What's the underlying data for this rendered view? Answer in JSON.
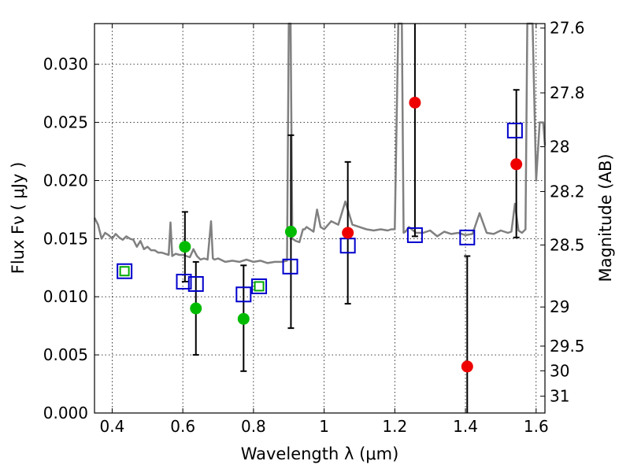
{
  "chart_data": {
    "type": "scatter",
    "xlabel": "Wavelength  λ (μm)",
    "ylabel": "Flux  Fν  ( μJy )",
    "ylabel_right": "Magnitude (AB)",
    "xlim": [
      0.35,
      1.625
    ],
    "ylim": [
      0.0,
      0.0335
    ],
    "grid": true,
    "x_ticks": [
      0.4,
      0.6,
      0.8,
      1.0,
      1.2,
      1.4,
      1.6
    ],
    "x_tick_labels": [
      "0.4",
      "0.6",
      "0.8",
      "1",
      "1.2",
      "1.4",
      "1.6"
    ],
    "y_ticks": [
      0.0,
      0.005,
      0.01,
      0.015,
      0.02,
      0.025,
      0.03
    ],
    "y_tick_labels": [
      "0.000",
      "0.005",
      "0.010",
      "0.015",
      "0.020",
      "0.025",
      "0.030"
    ],
    "right_ticks": [
      {
        "label": "27.6",
        "value": 27.6
      },
      {
        "label": "27.8",
        "value": 27.8
      },
      {
        "label": "28",
        "value": 28.0
      },
      {
        "label": "28.2",
        "value": 28.2
      },
      {
        "label": "28.5",
        "value": 28.5
      },
      {
        "label": "29",
        "value": 29.0
      },
      {
        "label": "29.5",
        "value": 29.5
      },
      {
        "label": "30",
        "value": 30.0
      },
      {
        "label": "31",
        "value": 31.0
      }
    ],
    "series": [
      {
        "marker": "line",
        "color": "#808080",
        "x": [
          0.35,
          0.36,
          0.37,
          0.38,
          0.39,
          0.4,
          0.41,
          0.42,
          0.43,
          0.44,
          0.45,
          0.46,
          0.47,
          0.48,
          0.49,
          0.5,
          0.51,
          0.52,
          0.53,
          0.54,
          0.55,
          0.56,
          0.565,
          0.57,
          0.58,
          0.59,
          0.6,
          0.61,
          0.62,
          0.63,
          0.64,
          0.65,
          0.66,
          0.67,
          0.68,
          0.685,
          0.69,
          0.7,
          0.72,
          0.74,
          0.76,
          0.78,
          0.8,
          0.82,
          0.84,
          0.86,
          0.88,
          0.895,
          0.9,
          0.905,
          0.91,
          0.92,
          0.93,
          0.94,
          0.945,
          0.95,
          0.96,
          0.97,
          0.98,
          0.99,
          1.0,
          1.02,
          1.04,
          1.06,
          1.08,
          1.09,
          1.1,
          1.12,
          1.14,
          1.16,
          1.18,
          1.19,
          1.2,
          1.21,
          1.22,
          1.225,
          1.23,
          1.24,
          1.26,
          1.28,
          1.3,
          1.32,
          1.34,
          1.36,
          1.38,
          1.4,
          1.42,
          1.44,
          1.46,
          1.48,
          1.5,
          1.52,
          1.53,
          1.54,
          1.55,
          1.56,
          1.57,
          1.575,
          1.58,
          1.59,
          1.6,
          1.61,
          1.62,
          1.625
        ],
        "y": [
          0.0168,
          0.0162,
          0.015,
          0.0155,
          0.0153,
          0.015,
          0.0154,
          0.0151,
          0.0149,
          0.0152,
          0.015,
          0.0149,
          0.0143,
          0.0148,
          0.0141,
          0.0143,
          0.014,
          0.014,
          0.0138,
          0.0138,
          0.0137,
          0.0136,
          0.0164,
          0.0135,
          0.0137,
          0.0136,
          0.0136,
          0.0135,
          0.0134,
          0.0141,
          0.0135,
          0.0132,
          0.0133,
          0.0132,
          0.0165,
          0.0133,
          0.0132,
          0.0133,
          0.013,
          0.0131,
          0.013,
          0.0132,
          0.013,
          0.0131,
          0.0129,
          0.013,
          0.013,
          0.0131,
          0.0335,
          0.0335,
          0.015,
          0.0148,
          0.0147,
          0.0158,
          0.0158,
          0.016,
          0.0158,
          0.0156,
          0.0175,
          0.016,
          0.0158,
          0.0165,
          0.0162,
          0.0182,
          0.0162,
          0.0161,
          0.016,
          0.0158,
          0.0157,
          0.0158,
          0.0157,
          0.0158,
          0.0158,
          0.0335,
          0.0335,
          0.0155,
          0.0156,
          0.016,
          0.0155,
          0.0155,
          0.0157,
          0.0152,
          0.0156,
          0.0154,
          0.0155,
          0.0153,
          0.0154,
          0.0172,
          0.0155,
          0.0154,
          0.0157,
          0.0155,
          0.0156,
          0.018,
          0.0157,
          0.0155,
          0.0158,
          0.0335,
          0.0335,
          0.0335,
          0.02,
          0.025,
          0.025,
          0.023
        ]
      },
      {
        "marker": "square-open",
        "color": "#0000cc",
        "x": [
          0.435,
          0.603,
          0.637,
          0.772,
          0.816,
          0.904,
          1.067,
          1.257,
          1.405,
          1.54
        ],
        "y": [
          0.0122,
          0.0113,
          0.0111,
          0.0102,
          0.0109,
          0.0126,
          0.0144,
          0.0153,
          0.0151,
          0.0243
        ]
      },
      {
        "marker": "square-open",
        "color": "#00aa00",
        "x": [
          0.435,
          0.816
        ],
        "y": [
          0.0122,
          0.0109
        ]
      },
      {
        "marker": "circle-filled",
        "color": "#00bb00",
        "x": [
          0.606,
          0.637,
          0.772,
          0.906
        ],
        "y": [
          0.0143,
          0.009,
          0.0081,
          0.0156
        ]
      },
      {
        "marker": "circle-filled",
        "color": "#ee0000",
        "x": [
          1.067,
          1.257,
          1.405,
          1.544
        ],
        "y": [
          0.0155,
          0.0267,
          0.004,
          0.0214
        ]
      },
      {
        "marker": "errorbar",
        "color": "#000000",
        "x": [
          0.606,
          0.637,
          0.772,
          0.906,
          1.067,
          1.257,
          1.405,
          1.544
        ],
        "y_low": [
          0.0113,
          0.005,
          0.0036,
          0.0073,
          0.0094,
          0.0152,
          0.0,
          0.0151
        ],
        "y_high": [
          0.0173,
          0.013,
          0.0127,
          0.0239,
          0.0216,
          0.0335,
          0.0135,
          0.0278
        ]
      }
    ]
  }
}
